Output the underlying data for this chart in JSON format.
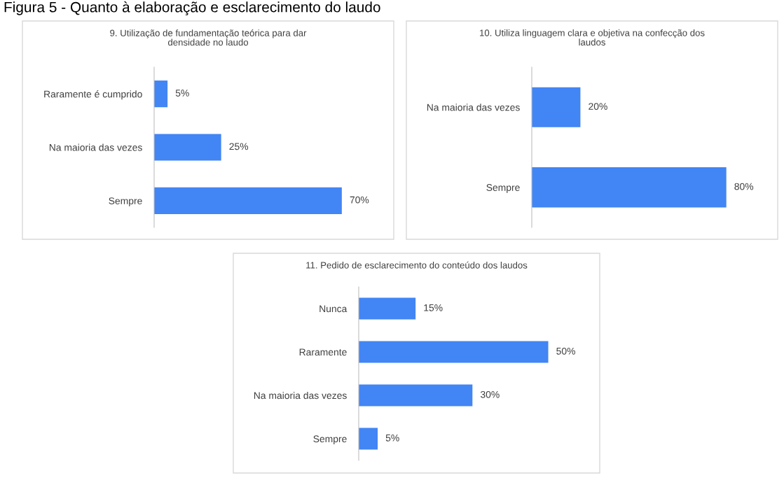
{
  "chart_data": [
    {
      "type": "bar",
      "orientation": "horizontal",
      "title": "Figura 5 - Quanto à elaboração e esclarecimento do laudo",
      "subtitle": "9. Utilização de fundamentação teórica para dar\ndensidade no laudo",
      "categories": [
        "Raramente é cumprido",
        "Na maioria das vezes",
        "Sempre"
      ],
      "values": [
        5,
        25,
        70
      ],
      "value_labels": [
        "5%",
        "25%",
        "70%"
      ],
      "color": "#4285f4",
      "grid": false,
      "legend": false
    },
    {
      "type": "bar",
      "orientation": "horizontal",
      "subtitle": "10. Utiliza linguagem clara e objetiva na confecção dos\nlaudos",
      "categories": [
        "Na maioria das vezes",
        "Sempre"
      ],
      "values": [
        20,
        80
      ],
      "value_labels": [
        "20%",
        "80%"
      ],
      "color": "#4285f4",
      "grid": false,
      "legend": false
    },
    {
      "type": "bar",
      "orientation": "horizontal",
      "subtitle": "11. Pedido de esclarecimento do conteúdo dos laudos",
      "categories": [
        "Nunca",
        "Raramente",
        "Na maioria das vezes",
        "Sempre"
      ],
      "values": [
        15,
        50,
        30,
        5
      ],
      "value_labels": [
        "15%",
        "50%",
        "30%",
        "5%"
      ],
      "color": "#4285f4",
      "grid": false,
      "legend": false
    }
  ]
}
